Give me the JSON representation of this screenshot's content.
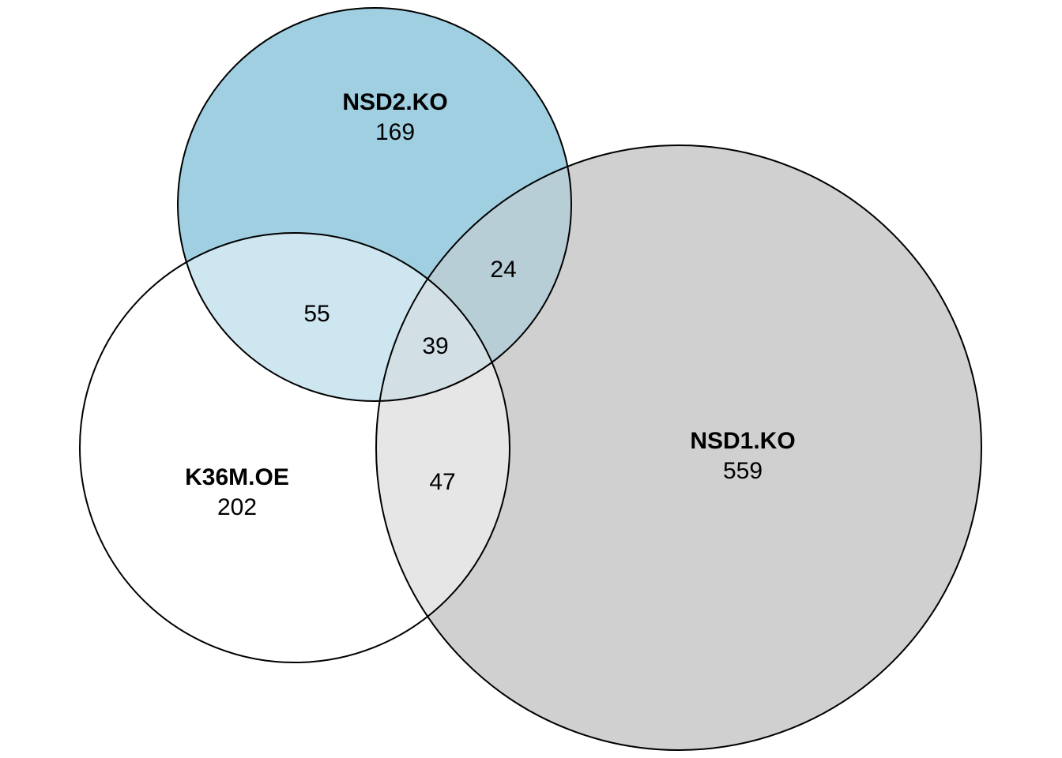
{
  "colors": {
    "nsd2_fill": "#9fcfe0",
    "nsd1_fill": "#d0d0d0",
    "k36m_fill": "#ffffff",
    "nsd2_k36m_overlap": "#cde6f0",
    "nsd2_nsd1_overlap": "#b8ced7",
    "nsd1_k36m_overlap": "#e6e6e6",
    "all_three_overlap": "#d2e0e6",
    "outline": "#000000"
  },
  "sets": {
    "nsd2": {
      "name": "NSD2.KO",
      "count": "169"
    },
    "k36m": {
      "name": "K36M.OE",
      "count": "202"
    },
    "nsd1": {
      "name": "NSD1.KO",
      "count": "559"
    }
  },
  "intersections": {
    "nsd2_k36m": "55",
    "nsd2_nsd1": "24",
    "k36m_nsd1": "47",
    "all_three": "39"
  }
}
